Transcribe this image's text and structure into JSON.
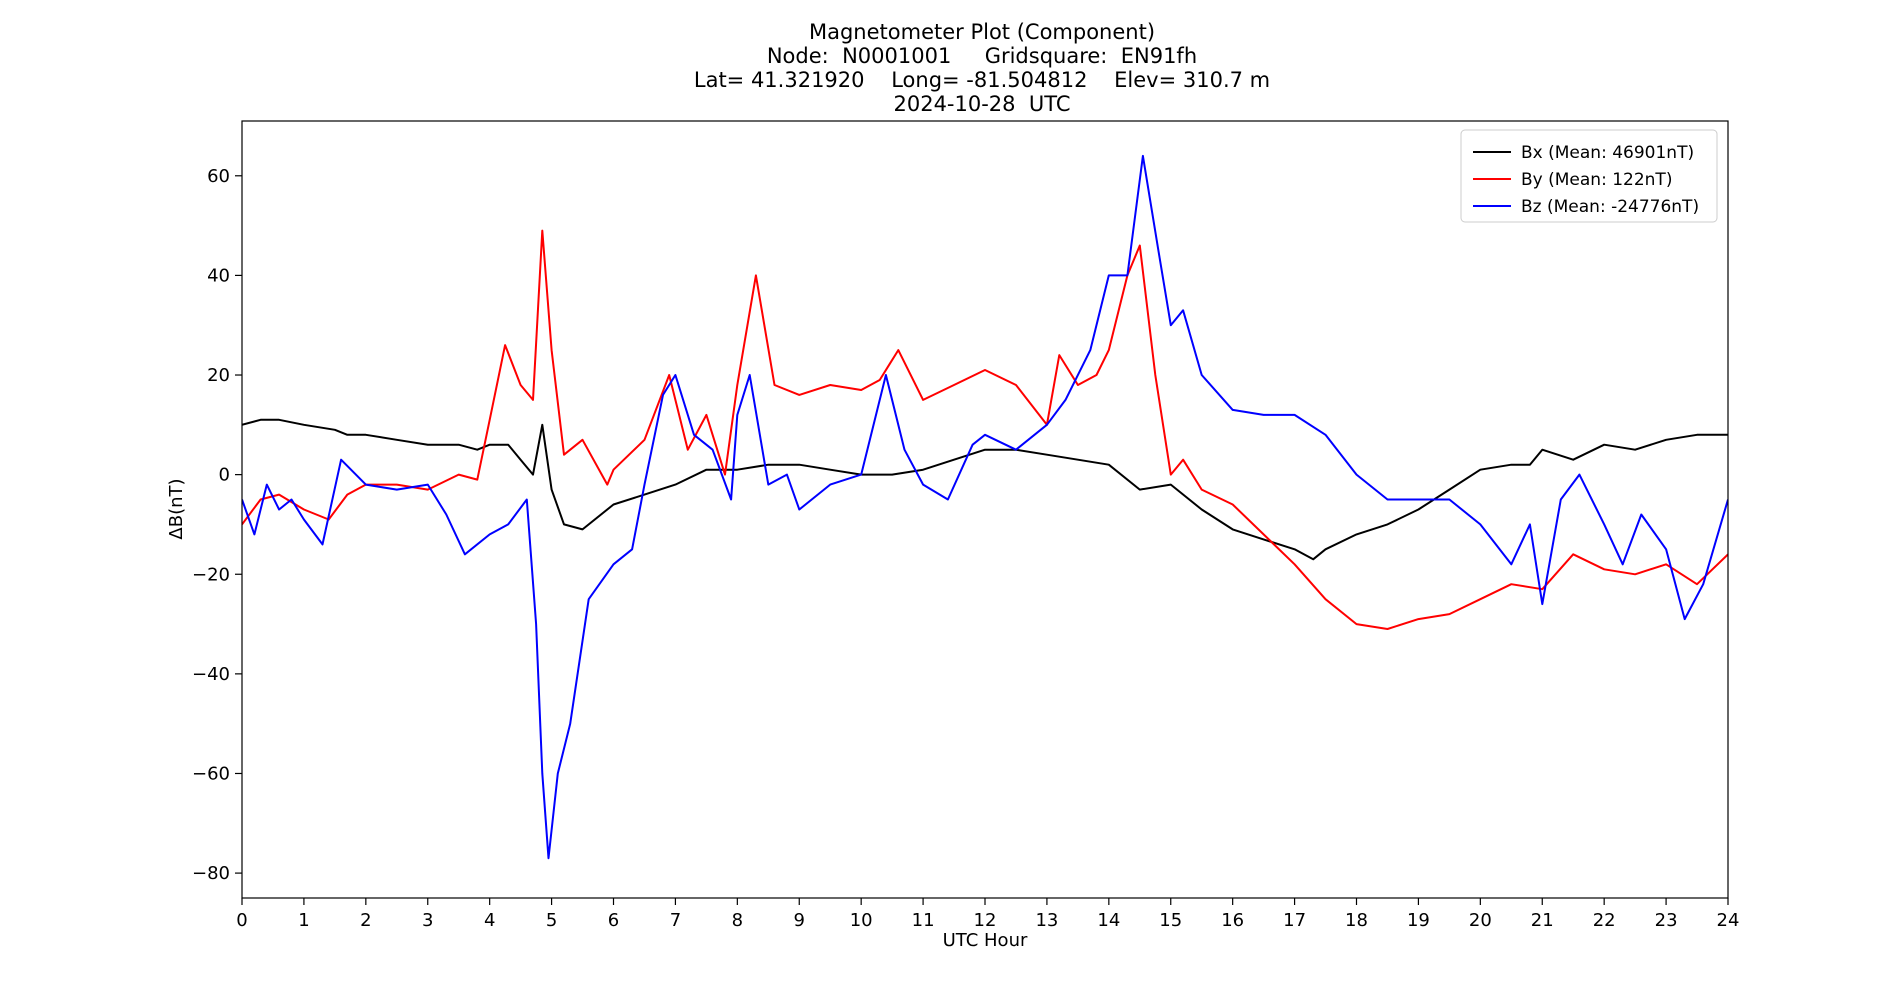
{
  "title": {
    "line1": "Magnetometer Plot (Component)",
    "line2": "Node:  N0001001     Gridsquare:  EN91fh",
    "line3": "Lat= 41.321920    Long= -81.504812    Elev= 310.7 m",
    "line4": "2024-10-28  UTC"
  },
  "chart_data": {
    "type": "line",
    "xlabel": "UTC Hour",
    "ylabel": "ΔB(nT)",
    "xlim": [
      0,
      24
    ],
    "ylim": [
      -85,
      71
    ],
    "xticks": [
      0,
      1,
      2,
      3,
      4,
      5,
      6,
      7,
      8,
      9,
      10,
      11,
      12,
      13,
      14,
      15,
      16,
      17,
      18,
      19,
      20,
      21,
      22,
      23,
      24
    ],
    "yticks": [
      -80,
      -60,
      -40,
      -20,
      0,
      20,
      40,
      60
    ],
    "ytick_labels": [
      "−80",
      "−60",
      "−40",
      "−20",
      "0",
      "20",
      "40",
      "60"
    ],
    "grid": false,
    "legend_position": "upper right",
    "series": [
      {
        "name": "Bx (Mean: 46901nT)",
        "color": "#000000",
        "x": [
          0,
          0.3,
          0.6,
          1.0,
          1.5,
          1.7,
          2.0,
          2.5,
          3.0,
          3.5,
          3.8,
          4.0,
          4.3,
          4.5,
          4.7,
          4.85,
          5.0,
          5.2,
          5.5,
          6.0,
          6.5,
          7.0,
          7.5,
          8.0,
          8.5,
          9.0,
          9.5,
          10.0,
          10.5,
          11.0,
          11.5,
          12.0,
          12.5,
          13.0,
          13.5,
          14.0,
          14.5,
          15.0,
          15.5,
          16.0,
          16.5,
          17.0,
          17.3,
          17.5,
          18.0,
          18.5,
          19.0,
          19.5,
          20.0,
          20.5,
          20.8,
          21.0,
          21.5,
          22.0,
          22.5,
          23.0,
          23.5,
          24.0
        ],
        "values": [
          10,
          11,
          11,
          10,
          9,
          8,
          8,
          7,
          6,
          6,
          5,
          6,
          6,
          3,
          0,
          10,
          -3,
          -10,
          -11,
          -6,
          -4,
          -2,
          1,
          1,
          2,
          2,
          1,
          0,
          0,
          1,
          3,
          5,
          5,
          4,
          3,
          2,
          -3,
          -2,
          -7,
          -11,
          -13,
          -15,
          -17,
          -15,
          -12,
          -10,
          -7,
          -3,
          1,
          2,
          2,
          5,
          3,
          6,
          5,
          7,
          8,
          8
        ]
      },
      {
        "name": "By (Mean: 122nT)",
        "color": "#ff0000",
        "x": [
          0,
          0.3,
          0.6,
          1.0,
          1.4,
          1.7,
          2.0,
          2.5,
          3.0,
          3.5,
          3.8,
          4.0,
          4.25,
          4.5,
          4.7,
          4.85,
          5.0,
          5.2,
          5.5,
          5.9,
          6.0,
          6.5,
          6.9,
          7.2,
          7.5,
          7.8,
          8.0,
          8.3,
          8.6,
          9.0,
          9.5,
          10.0,
          10.3,
          10.6,
          11.0,
          11.5,
          12.0,
          12.5,
          13.0,
          13.2,
          13.5,
          13.8,
          14.0,
          14.3,
          14.5,
          14.75,
          15.0,
          15.2,
          15.5,
          16.0,
          16.5,
          17.0,
          17.5,
          18.0,
          18.5,
          19.0,
          19.5,
          20.0,
          20.5,
          21.0,
          21.5,
          22.0,
          22.5,
          23.0,
          23.5,
          24.0
        ],
        "values": [
          -10,
          -5,
          -4,
          -7,
          -9,
          -4,
          -2,
          -2,
          -3,
          0,
          -1,
          11,
          26,
          18,
          15,
          49,
          25,
          4,
          7,
          -2,
          1,
          7,
          20,
          5,
          12,
          0,
          18,
          40,
          18,
          16,
          18,
          17,
          19,
          25,
          15,
          18,
          21,
          18,
          10,
          24,
          18,
          20,
          25,
          40,
          46,
          20,
          0,
          3,
          -3,
          -6,
          -12,
          -18,
          -25,
          -30,
          -31,
          -29,
          -28,
          -25,
          -22,
          -23,
          -16,
          -19,
          -20,
          -18,
          -22,
          -16
        ]
      },
      {
        "name": "Bz (Mean: -24776nT)",
        "color": "#0000ff",
        "x": [
          0,
          0.2,
          0.4,
          0.6,
          0.8,
          1.0,
          1.3,
          1.6,
          2.0,
          2.5,
          3.0,
          3.3,
          3.6,
          4.0,
          4.3,
          4.6,
          4.75,
          4.85,
          4.95,
          5.1,
          5.3,
          5.6,
          6.0,
          6.3,
          6.5,
          6.8,
          7.0,
          7.3,
          7.6,
          7.9,
          8.0,
          8.2,
          8.5,
          8.8,
          9.0,
          9.5,
          10.0,
          10.4,
          10.7,
          11.0,
          11.4,
          11.8,
          12.0,
          12.5,
          13.0,
          13.3,
          13.7,
          14.0,
          14.3,
          14.55,
          14.8,
          15.0,
          15.2,
          15.5,
          16.0,
          16.5,
          17.0,
          17.5,
          18.0,
          18.5,
          19.0,
          19.5,
          20.0,
          20.5,
          20.8,
          21.0,
          21.3,
          21.6,
          22.0,
          22.3,
          22.6,
          23.0,
          23.3,
          23.6,
          24.0
        ],
        "values": [
          -5,
          -12,
          -2,
          -7,
          -5,
          -9,
          -14,
          3,
          -2,
          -3,
          -2,
          -8,
          -16,
          -12,
          -10,
          -5,
          -30,
          -60,
          -77,
          -60,
          -50,
          -25,
          -18,
          -15,
          -2,
          16,
          20,
          8,
          5,
          -5,
          12,
          20,
          -2,
          0,
          -7,
          -2,
          0,
          20,
          5,
          -2,
          -5,
          6,
          8,
          5,
          10,
          15,
          25,
          40,
          40,
          64,
          45,
          30,
          33,
          20,
          13,
          12,
          12,
          8,
          0,
          -5,
          -5,
          -5,
          -10,
          -18,
          -10,
          -26,
          -5,
          0,
          -10,
          -18,
          -8,
          -15,
          -29,
          -22,
          -5
        ]
      }
    ]
  }
}
